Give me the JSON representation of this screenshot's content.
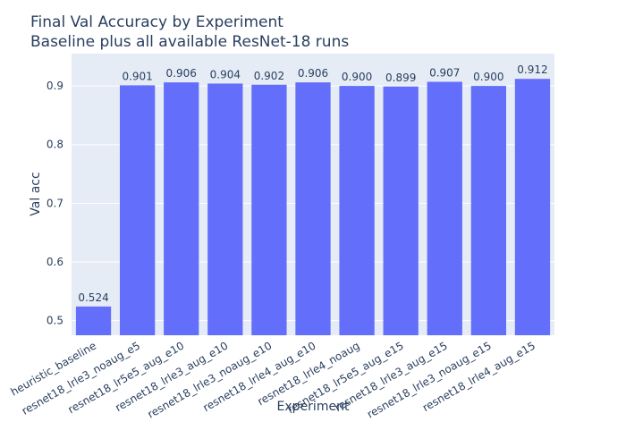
{
  "chart_data": {
    "type": "bar",
    "title": "Final Val Accuracy by Experiment",
    "subtitle": "Baseline plus all available ResNet-18 runs",
    "xlabel": "Experiment",
    "ylabel": "Val acc",
    "ylim": [
      0.475,
      0.955
    ],
    "yticks": [
      0.5,
      0.6,
      0.7,
      0.8,
      0.9
    ],
    "ytick_labels": [
      "0.5",
      "0.6",
      "0.7",
      "0.8",
      "0.9"
    ],
    "categories": [
      "heuristic_baseline",
      "resnet18_lrle3_noaug_e5",
      "resnet18_lr5e5_aug_e10",
      "resnet18_lrle3_aug_e10",
      "resnet18_lrle3_noaug_e10",
      "resnet18_lrle4_aug_e10",
      "resnet18_lrle4_noaug",
      "resnet18_lr5e5_aug_e15",
      "resnet18_lrle3_aug_e15",
      "resnet18_lrle3_noaug_e15",
      "resnet18_lrle4_aug_e15"
    ],
    "values": [
      0.524,
      0.901,
      0.906,
      0.904,
      0.902,
      0.906,
      0.9,
      0.899,
      0.907,
      0.9,
      0.912
    ],
    "data_labels": [
      "0.524",
      "0.901",
      "0.906",
      "0.904",
      "0.902",
      "0.906",
      "0.900",
      "0.899",
      "0.907",
      "0.900",
      "0.912"
    ],
    "grid": true,
    "colors": {
      "bar": "#636efa",
      "plot_bg": "#e5ecf6",
      "grid": "#ffffff",
      "text": "#2a3f5f"
    }
  }
}
